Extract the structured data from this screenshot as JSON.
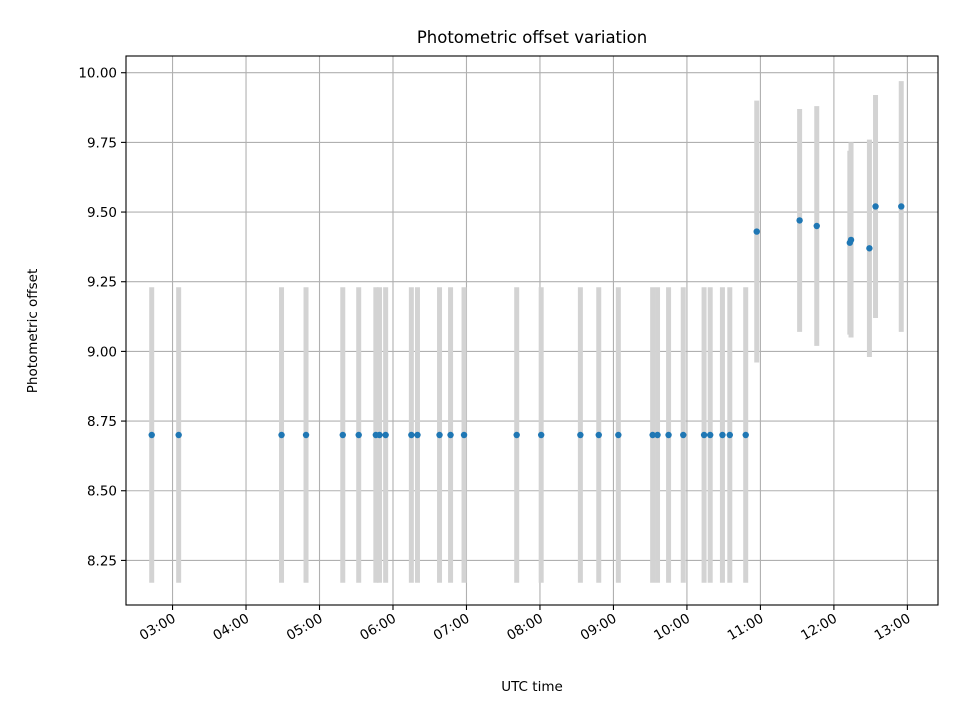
{
  "chart_data": {
    "type": "scatter",
    "title": "Photometric offset variation",
    "xlabel": "UTC time",
    "ylabel": "Photometric offset",
    "xlim": [
      "02:22",
      "13:25"
    ],
    "ylim": [
      8.09,
      10.06
    ],
    "yticks": [
      8.25,
      8.5,
      8.75,
      9.0,
      9.25,
      9.5,
      9.75,
      10.0
    ],
    "ytick_labels": [
      "8.25",
      "8.50",
      "8.75",
      "9.00",
      "9.25",
      "9.50",
      "9.75",
      "10.00"
    ],
    "xticks": [
      "03:00",
      "04:00",
      "05:00",
      "06:00",
      "07:00",
      "08:00",
      "09:00",
      "10:00",
      "11:00",
      "12:00",
      "13:00"
    ],
    "grid": true,
    "colors": {
      "point": "#1f77b4",
      "errorbar": "#d3d3d3",
      "grid": "#b0b0b0"
    },
    "points": [
      {
        "t": "02:43",
        "y": 8.7,
        "err": 0.53
      },
      {
        "t": "03:05",
        "y": 8.7,
        "err": 0.53
      },
      {
        "t": "04:29",
        "y": 8.7,
        "err": 0.53
      },
      {
        "t": "04:49",
        "y": 8.7,
        "err": 0.53
      },
      {
        "t": "05:19",
        "y": 8.7,
        "err": 0.53
      },
      {
        "t": "05:32",
        "y": 8.7,
        "err": 0.53
      },
      {
        "t": "05:46",
        "y": 8.7,
        "err": 0.53
      },
      {
        "t": "05:49",
        "y": 8.7,
        "err": 0.53
      },
      {
        "t": "05:54",
        "y": 8.7,
        "err": 0.53
      },
      {
        "t": "06:15",
        "y": 8.7,
        "err": 0.53
      },
      {
        "t": "06:20",
        "y": 8.7,
        "err": 0.53
      },
      {
        "t": "06:38",
        "y": 8.7,
        "err": 0.53
      },
      {
        "t": "06:47",
        "y": 8.7,
        "err": 0.53
      },
      {
        "t": "06:58",
        "y": 8.7,
        "err": 0.53
      },
      {
        "t": "07:41",
        "y": 8.7,
        "err": 0.53
      },
      {
        "t": "08:01",
        "y": 8.7,
        "err": 0.53
      },
      {
        "t": "08:33",
        "y": 8.7,
        "err": 0.53
      },
      {
        "t": "08:48",
        "y": 8.7,
        "err": 0.53
      },
      {
        "t": "09:04",
        "y": 8.7,
        "err": 0.53
      },
      {
        "t": "09:32",
        "y": 8.7,
        "err": 0.53
      },
      {
        "t": "09:36",
        "y": 8.7,
        "err": 0.53
      },
      {
        "t": "09:45",
        "y": 8.7,
        "err": 0.53
      },
      {
        "t": "09:57",
        "y": 8.7,
        "err": 0.53
      },
      {
        "t": "10:14",
        "y": 8.7,
        "err": 0.53
      },
      {
        "t": "10:19",
        "y": 8.7,
        "err": 0.53
      },
      {
        "t": "10:29",
        "y": 8.7,
        "err": 0.53
      },
      {
        "t": "10:35",
        "y": 8.7,
        "err": 0.53
      },
      {
        "t": "10:48",
        "y": 8.7,
        "err": 0.53
      },
      {
        "t": "10:57",
        "y": 9.43,
        "err": 0.47
      },
      {
        "t": "11:32",
        "y": 9.47,
        "err": 0.4
      },
      {
        "t": "11:46",
        "y": 9.45,
        "err": 0.43
      },
      {
        "t": "12:13",
        "y": 9.39,
        "err": 0.33
      },
      {
        "t": "12:14",
        "y": 9.4,
        "err": 0.35
      },
      {
        "t": "12:29",
        "y": 9.37,
        "err": 0.39
      },
      {
        "t": "12:34",
        "y": 9.52,
        "err": 0.4
      },
      {
        "t": "12:55",
        "y": 9.52,
        "err": 0.45
      }
    ]
  }
}
